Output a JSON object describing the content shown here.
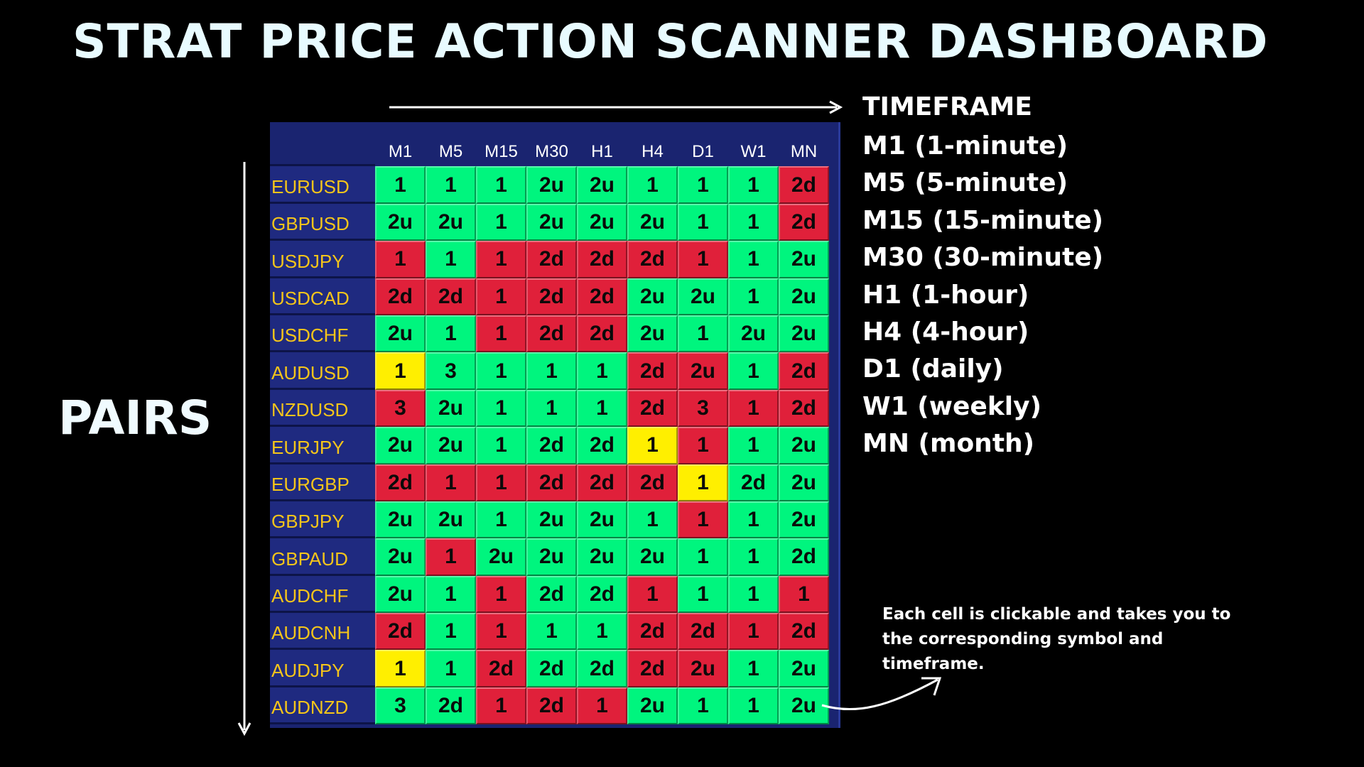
{
  "title": "STRAT PRICE ACTION SCANNER DASHBOARD",
  "pairs_label": "PAIRS",
  "colors": {
    "green": "#00f57e",
    "red": "#e0203a",
    "yellow": "#ffef00",
    "panel": "#1a2470",
    "pair_text": "#f5c51a"
  },
  "legend": {
    "heading": "TIMEFRAME",
    "items": [
      "M1 (1-minute)",
      "M5 (5-minute)",
      "M15 (15-minute)",
      "M30 (30-minute)",
      "H1 (1-hour)",
      "H4 (4-hour)",
      "D1 (daily)",
      "W1 (weekly)",
      "MN (month)"
    ]
  },
  "note": "Each cell is clickable and takes you to the corresponding symbol and timeframe.",
  "timeframes": [
    "M1",
    "M5",
    "M15",
    "M30",
    "H1",
    "H4",
    "D1",
    "W1",
    "MN"
  ],
  "rows": [
    {
      "pair": "EURUSD",
      "cells": [
        {
          "v": "1",
          "c": "green"
        },
        {
          "v": "1",
          "c": "green"
        },
        {
          "v": "1",
          "c": "green"
        },
        {
          "v": "2u",
          "c": "green"
        },
        {
          "v": "2u",
          "c": "green"
        },
        {
          "v": "1",
          "c": "green"
        },
        {
          "v": "1",
          "c": "green"
        },
        {
          "v": "1",
          "c": "green"
        },
        {
          "v": "2d",
          "c": "red"
        }
      ]
    },
    {
      "pair": "GBPUSD",
      "cells": [
        {
          "v": "2u",
          "c": "green"
        },
        {
          "v": "2u",
          "c": "green"
        },
        {
          "v": "1",
          "c": "green"
        },
        {
          "v": "2u",
          "c": "green"
        },
        {
          "v": "2u",
          "c": "green"
        },
        {
          "v": "2u",
          "c": "green"
        },
        {
          "v": "1",
          "c": "green"
        },
        {
          "v": "1",
          "c": "green"
        },
        {
          "v": "2d",
          "c": "red"
        }
      ]
    },
    {
      "pair": "USDJPY",
      "cells": [
        {
          "v": "1",
          "c": "red"
        },
        {
          "v": "1",
          "c": "green"
        },
        {
          "v": "1",
          "c": "red"
        },
        {
          "v": "2d",
          "c": "red"
        },
        {
          "v": "2d",
          "c": "red"
        },
        {
          "v": "2d",
          "c": "red"
        },
        {
          "v": "1",
          "c": "red"
        },
        {
          "v": "1",
          "c": "green"
        },
        {
          "v": "2u",
          "c": "green"
        }
      ]
    },
    {
      "pair": "USDCAD",
      "cells": [
        {
          "v": "2d",
          "c": "red"
        },
        {
          "v": "2d",
          "c": "red"
        },
        {
          "v": "1",
          "c": "red"
        },
        {
          "v": "2d",
          "c": "red"
        },
        {
          "v": "2d",
          "c": "red"
        },
        {
          "v": "2u",
          "c": "green"
        },
        {
          "v": "2u",
          "c": "green"
        },
        {
          "v": "1",
          "c": "green"
        },
        {
          "v": "2u",
          "c": "green"
        }
      ]
    },
    {
      "pair": "USDCHF",
      "cells": [
        {
          "v": "2u",
          "c": "green"
        },
        {
          "v": "1",
          "c": "green"
        },
        {
          "v": "1",
          "c": "red"
        },
        {
          "v": "2d",
          "c": "red"
        },
        {
          "v": "2d",
          "c": "red"
        },
        {
          "v": "2u",
          "c": "green"
        },
        {
          "v": "1",
          "c": "green"
        },
        {
          "v": "2u",
          "c": "green"
        },
        {
          "v": "2u",
          "c": "green"
        }
      ]
    },
    {
      "pair": "AUDUSD",
      "cells": [
        {
          "v": "1",
          "c": "yellow"
        },
        {
          "v": "3",
          "c": "green"
        },
        {
          "v": "1",
          "c": "green"
        },
        {
          "v": "1",
          "c": "green"
        },
        {
          "v": "1",
          "c": "green"
        },
        {
          "v": "2d",
          "c": "red"
        },
        {
          "v": "2u",
          "c": "red"
        },
        {
          "v": "1",
          "c": "green"
        },
        {
          "v": "2d",
          "c": "red"
        }
      ]
    },
    {
      "pair": "NZDUSD",
      "cells": [
        {
          "v": "3",
          "c": "red"
        },
        {
          "v": "2u",
          "c": "green"
        },
        {
          "v": "1",
          "c": "green"
        },
        {
          "v": "1",
          "c": "green"
        },
        {
          "v": "1",
          "c": "green"
        },
        {
          "v": "2d",
          "c": "red"
        },
        {
          "v": "3",
          "c": "red"
        },
        {
          "v": "1",
          "c": "red"
        },
        {
          "v": "2d",
          "c": "red"
        }
      ]
    },
    {
      "pair": "EURJPY",
      "cells": [
        {
          "v": "2u",
          "c": "green"
        },
        {
          "v": "2u",
          "c": "green"
        },
        {
          "v": "1",
          "c": "green"
        },
        {
          "v": "2d",
          "c": "green"
        },
        {
          "v": "2d",
          "c": "green"
        },
        {
          "v": "1",
          "c": "yellow"
        },
        {
          "v": "1",
          "c": "red"
        },
        {
          "v": "1",
          "c": "green"
        },
        {
          "v": "2u",
          "c": "green"
        }
      ]
    },
    {
      "pair": "EURGBP",
      "cells": [
        {
          "v": "2d",
          "c": "red"
        },
        {
          "v": "1",
          "c": "red"
        },
        {
          "v": "1",
          "c": "red"
        },
        {
          "v": "2d",
          "c": "red"
        },
        {
          "v": "2d",
          "c": "red"
        },
        {
          "v": "2d",
          "c": "red"
        },
        {
          "v": "1",
          "c": "yellow"
        },
        {
          "v": "2d",
          "c": "green"
        },
        {
          "v": "2u",
          "c": "green"
        }
      ]
    },
    {
      "pair": "GBPJPY",
      "cells": [
        {
          "v": "2u",
          "c": "green"
        },
        {
          "v": "2u",
          "c": "green"
        },
        {
          "v": "1",
          "c": "green"
        },
        {
          "v": "2u",
          "c": "green"
        },
        {
          "v": "2u",
          "c": "green"
        },
        {
          "v": "1",
          "c": "green"
        },
        {
          "v": "1",
          "c": "red"
        },
        {
          "v": "1",
          "c": "green"
        },
        {
          "v": "2u",
          "c": "green"
        }
      ]
    },
    {
      "pair": "GBPAUD",
      "cells": [
        {
          "v": "2u",
          "c": "green"
        },
        {
          "v": "1",
          "c": "red"
        },
        {
          "v": "2u",
          "c": "green"
        },
        {
          "v": "2u",
          "c": "green"
        },
        {
          "v": "2u",
          "c": "green"
        },
        {
          "v": "2u",
          "c": "green"
        },
        {
          "v": "1",
          "c": "green"
        },
        {
          "v": "1",
          "c": "green"
        },
        {
          "v": "2d",
          "c": "green"
        }
      ]
    },
    {
      "pair": "AUDCHF",
      "cells": [
        {
          "v": "2u",
          "c": "green"
        },
        {
          "v": "1",
          "c": "green"
        },
        {
          "v": "1",
          "c": "red"
        },
        {
          "v": "2d",
          "c": "green"
        },
        {
          "v": "2d",
          "c": "green"
        },
        {
          "v": "1",
          "c": "red"
        },
        {
          "v": "1",
          "c": "green"
        },
        {
          "v": "1",
          "c": "green"
        },
        {
          "v": "1",
          "c": "red"
        }
      ]
    },
    {
      "pair": "AUDCNH",
      "cells": [
        {
          "v": "2d",
          "c": "red"
        },
        {
          "v": "1",
          "c": "green"
        },
        {
          "v": "1",
          "c": "red"
        },
        {
          "v": "1",
          "c": "green"
        },
        {
          "v": "1",
          "c": "green"
        },
        {
          "v": "2d",
          "c": "red"
        },
        {
          "v": "2d",
          "c": "red"
        },
        {
          "v": "1",
          "c": "red"
        },
        {
          "v": "2d",
          "c": "red"
        }
      ]
    },
    {
      "pair": "AUDJPY",
      "cells": [
        {
          "v": "1",
          "c": "yellow"
        },
        {
          "v": "1",
          "c": "green"
        },
        {
          "v": "2d",
          "c": "red"
        },
        {
          "v": "2d",
          "c": "green"
        },
        {
          "v": "2d",
          "c": "green"
        },
        {
          "v": "2d",
          "c": "red"
        },
        {
          "v": "2u",
          "c": "red"
        },
        {
          "v": "1",
          "c": "green"
        },
        {
          "v": "2u",
          "c": "green"
        }
      ]
    },
    {
      "pair": "AUDNZD",
      "cells": [
        {
          "v": "3",
          "c": "green"
        },
        {
          "v": "2d",
          "c": "green"
        },
        {
          "v": "1",
          "c": "red"
        },
        {
          "v": "2d",
          "c": "red"
        },
        {
          "v": "1",
          "c": "red"
        },
        {
          "v": "2u",
          "c": "green"
        },
        {
          "v": "1",
          "c": "green"
        },
        {
          "v": "1",
          "c": "green"
        },
        {
          "v": "2u",
          "c": "green"
        }
      ]
    }
  ]
}
